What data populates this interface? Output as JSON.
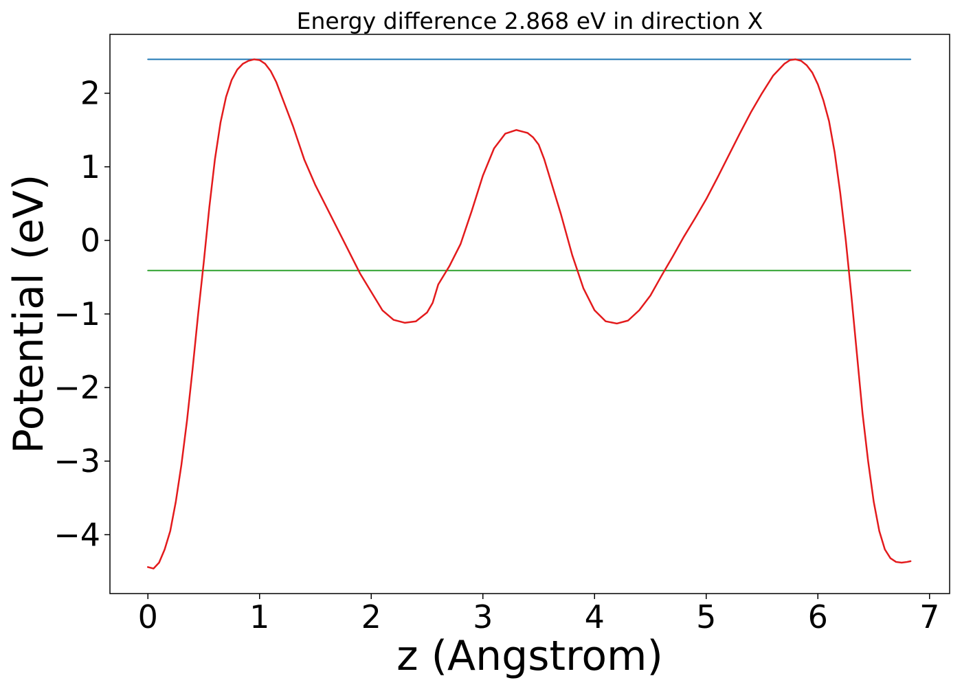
{
  "chart_data": {
    "type": "line",
    "title": "Energy difference 2.868 eV in direction X",
    "xlabel": "z (Angstrom)",
    "ylabel": "Potential (eV)",
    "xlim": [
      -0.34,
      7.18
    ],
    "ylim": [
      -4.8,
      2.8
    ],
    "grid": false,
    "x_ticks": [
      0,
      1,
      2,
      3,
      4,
      5,
      6,
      7
    ],
    "x_tick_labels": [
      "0",
      "1",
      "2",
      "3",
      "4",
      "5",
      "6",
      "7"
    ],
    "y_ticks": [
      -4,
      -3,
      -2,
      -1,
      0,
      1,
      2
    ],
    "y_tick_labels": [
      "−4",
      "−3",
      "−2",
      "−1",
      "0",
      "1",
      "2"
    ],
    "series": [
      {
        "color": "#e31a1c",
        "style": "curve",
        "x": [
          0,
          0.05,
          0.1,
          0.15,
          0.2,
          0.25,
          0.3,
          0.35,
          0.4,
          0.45,
          0.5,
          0.55,
          0.6,
          0.65,
          0.7,
          0.75,
          0.8,
          0.85,
          0.9,
          0.95,
          1.0,
          1.05,
          1.1,
          1.15,
          1.2,
          1.25,
          1.3,
          1.4,
          1.5,
          1.6,
          1.7,
          1.8,
          1.9,
          2.0,
          2.1,
          2.2,
          2.3,
          2.4,
          2.5,
          2.55,
          2.6,
          2.7,
          2.8,
          2.9,
          3.0,
          3.1,
          3.2,
          3.3,
          3.4,
          3.45,
          3.5,
          3.55,
          3.6,
          3.7,
          3.8,
          3.9,
          4.0,
          4.1,
          4.2,
          4.3,
          4.4,
          4.5,
          4.6,
          4.7,
          4.8,
          4.9,
          5.0,
          5.1,
          5.2,
          5.3,
          5.4,
          5.5,
          5.6,
          5.7,
          5.75,
          5.8,
          5.85,
          5.9,
          5.95,
          6.0,
          6.05,
          6.1,
          6.15,
          6.2,
          6.25,
          6.3,
          6.35,
          6.4,
          6.45,
          6.5,
          6.55,
          6.6,
          6.65,
          6.7,
          6.75,
          6.8,
          6.83
        ],
        "y": [
          -4.44,
          -4.46,
          -4.38,
          -4.2,
          -3.95,
          -3.55,
          -3.05,
          -2.45,
          -1.75,
          -1.0,
          -0.3,
          0.45,
          1.1,
          1.6,
          1.95,
          2.18,
          2.32,
          2.4,
          2.44,
          2.46,
          2.45,
          2.4,
          2.3,
          2.15,
          1.95,
          1.75,
          1.55,
          1.1,
          0.75,
          0.45,
          0.15,
          -0.15,
          -0.45,
          -0.7,
          -0.95,
          -1.08,
          -1.12,
          -1.1,
          -0.98,
          -0.85,
          -0.6,
          -0.35,
          -0.05,
          0.4,
          0.88,
          1.25,
          1.45,
          1.5,
          1.46,
          1.4,
          1.3,
          1.1,
          0.85,
          0.35,
          -0.2,
          -0.65,
          -0.95,
          -1.1,
          -1.13,
          -1.09,
          -0.95,
          -0.75,
          -0.48,
          -0.22,
          0.05,
          0.3,
          0.56,
          0.85,
          1.15,
          1.45,
          1.74,
          2.0,
          2.24,
          2.4,
          2.45,
          2.46,
          2.44,
          2.38,
          2.28,
          2.12,
          1.9,
          1.62,
          1.2,
          0.65,
          0.0,
          -0.75,
          -1.55,
          -2.35,
          -3.0,
          -3.55,
          -3.95,
          -4.2,
          -4.32,
          -4.37,
          -4.38,
          -4.37,
          -4.36
        ]
      },
      {
        "color": "#1f77b4",
        "style": "line",
        "x": [
          0,
          6.83
        ],
        "y": [
          2.46,
          2.46
        ]
      },
      {
        "color": "#2ca02c",
        "style": "line",
        "x": [
          0,
          6.83
        ],
        "y": [
          -0.41,
          -0.41
        ]
      }
    ]
  }
}
